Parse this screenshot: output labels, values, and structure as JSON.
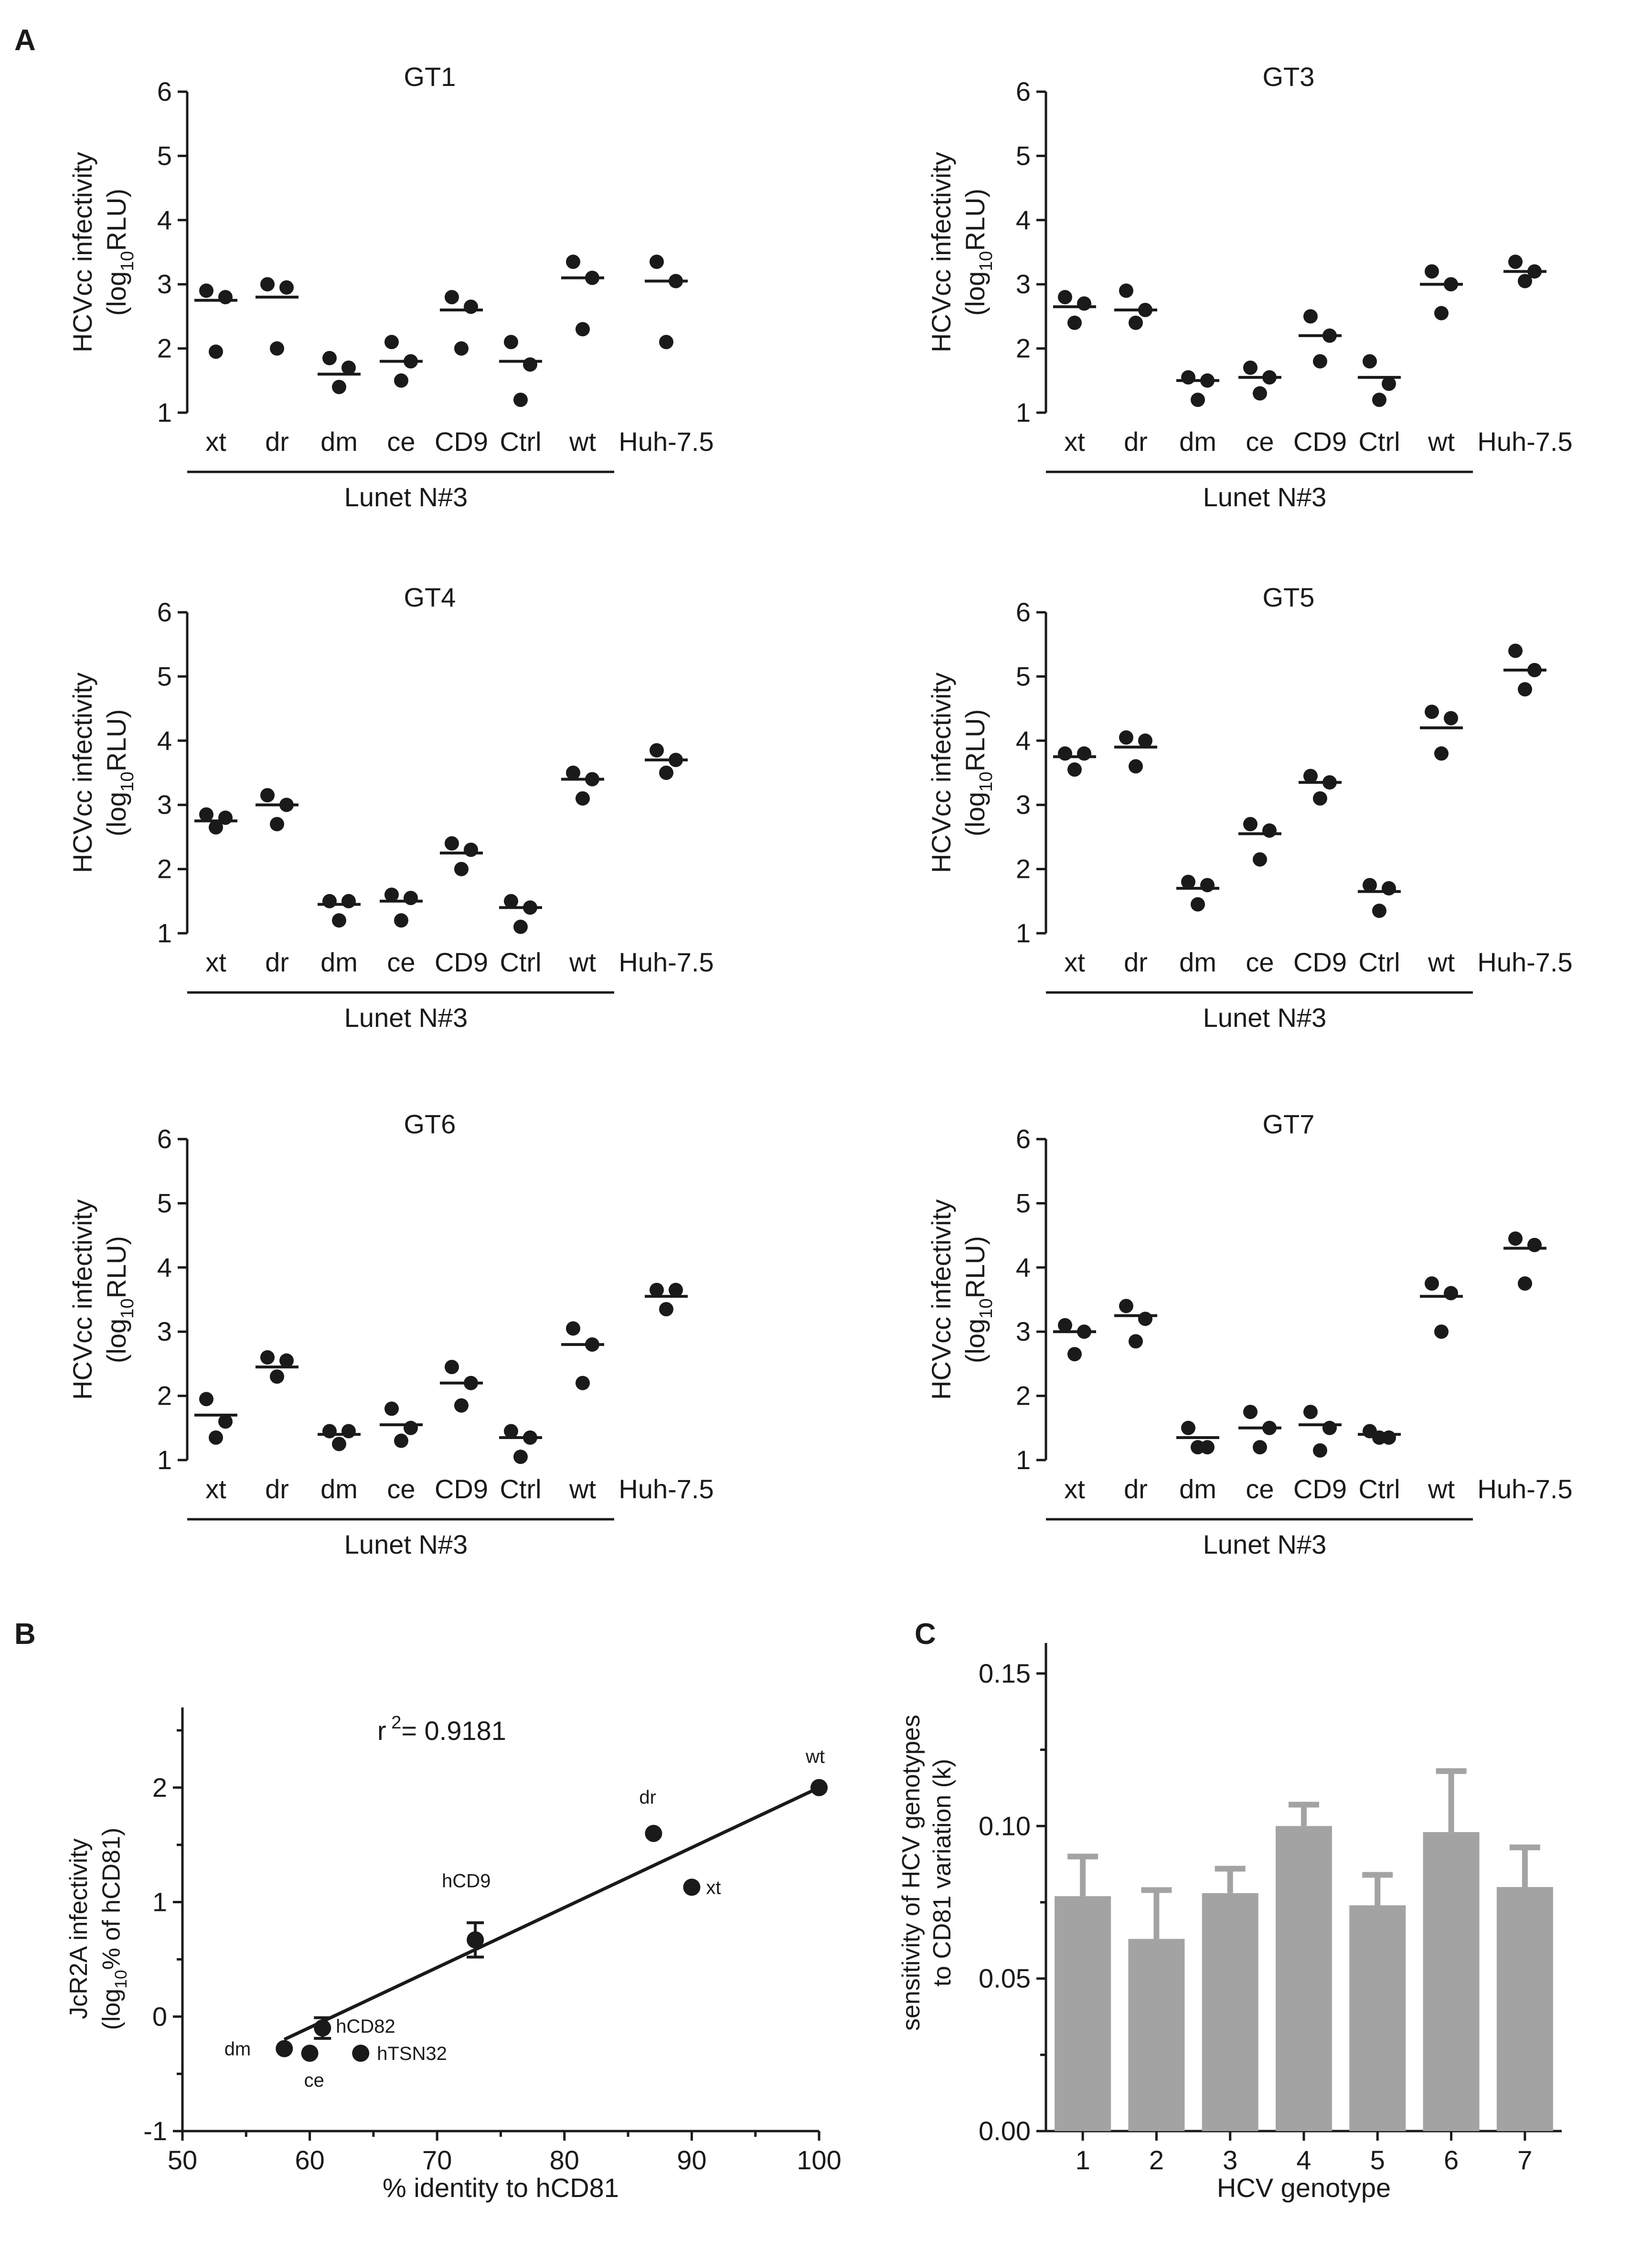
{
  "chart_data": [
    {
      "id": "A-GT1",
      "panel_label": "A",
      "type": "scatter",
      "title": "GT1",
      "ylabel_line1": "HCVcc infectivity",
      "ylabel_line2_prefix": "(log",
      "ylabel_line2_sub": "10",
      "ylabel_line2_suffix": "RLU)",
      "ylim": [
        1,
        6
      ],
      "yticks": [
        "1",
        "2",
        "3",
        "4",
        "5",
        "6"
      ],
      "categories": [
        "xt",
        "dr",
        "dm",
        "ce",
        "CD9",
        "Ctrl",
        "wt",
        "Huh-7.5"
      ],
      "group_label": "Lunet N#3",
      "points": [
        [
          2.9,
          2.8,
          1.95
        ],
        [
          3.0,
          2.95,
          2.0
        ],
        [
          1.85,
          1.7,
          1.4
        ],
        [
          2.1,
          1.8,
          1.5
        ],
        [
          2.8,
          2.65,
          2.0
        ],
        [
          2.1,
          1.75,
          1.2
        ],
        [
          3.35,
          3.1,
          2.3
        ],
        [
          3.35,
          3.05,
          2.1
        ]
      ],
      "means": [
        2.75,
        2.8,
        1.6,
        1.8,
        2.6,
        1.8,
        3.1,
        3.05
      ]
    },
    {
      "id": "A-GT3",
      "type": "scatter",
      "title": "GT3",
      "ylabel_line1": "HCVcc infectivity",
      "ylabel_line2_prefix": "(log",
      "ylabel_line2_sub": "10",
      "ylabel_line2_suffix": "RLU)",
      "ylim": [
        1,
        6
      ],
      "yticks": [
        "1",
        "2",
        "3",
        "4",
        "5",
        "6"
      ],
      "categories": [
        "xt",
        "dr",
        "dm",
        "ce",
        "CD9",
        "Ctrl",
        "wt",
        "Huh-7.5"
      ],
      "group_label": "Lunet N#3",
      "points": [
        [
          2.8,
          2.7,
          2.4
        ],
        [
          2.9,
          2.6,
          2.4
        ],
        [
          1.55,
          1.5,
          1.2
        ],
        [
          1.7,
          1.55,
          1.3
        ],
        [
          2.5,
          2.2,
          1.8
        ],
        [
          1.8,
          1.45,
          1.2
        ],
        [
          3.2,
          3.0,
          2.55
        ],
        [
          3.35,
          3.2,
          3.05
        ]
      ],
      "means": [
        2.65,
        2.6,
        1.5,
        1.55,
        2.2,
        1.55,
        3.0,
        3.2
      ]
    },
    {
      "id": "A-GT4",
      "type": "scatter",
      "title": "GT4",
      "ylabel_line1": "HCVcc infectivity",
      "ylabel_line2_prefix": "(log",
      "ylabel_line2_sub": "10",
      "ylabel_line2_suffix": "RLU)",
      "ylim": [
        1,
        6
      ],
      "yticks": [
        "1",
        "2",
        "3",
        "4",
        "5",
        "6"
      ],
      "categories": [
        "xt",
        "dr",
        "dm",
        "ce",
        "CD9",
        "Ctrl",
        "wt",
        "Huh-7.5"
      ],
      "group_label": "Lunet N#3",
      "points": [
        [
          2.85,
          2.8,
          2.65
        ],
        [
          3.15,
          3.0,
          2.7
        ],
        [
          1.5,
          1.5,
          1.2
        ],
        [
          1.6,
          1.55,
          1.2
        ],
        [
          2.4,
          2.3,
          2.0
        ],
        [
          1.5,
          1.4,
          1.1
        ],
        [
          3.5,
          3.4,
          3.1
        ],
        [
          3.85,
          3.7,
          3.5
        ]
      ],
      "means": [
        2.75,
        3.0,
        1.45,
        1.5,
        2.25,
        1.4,
        3.4,
        3.7
      ]
    },
    {
      "id": "A-GT5",
      "type": "scatter",
      "title": "GT5",
      "ylabel_line1": "HCVcc infectivity",
      "ylabel_line2_prefix": "(log",
      "ylabel_line2_sub": "10",
      "ylabel_line2_suffix": "RLU)",
      "ylim": [
        1,
        6
      ],
      "yticks": [
        "1",
        "2",
        "3",
        "4",
        "5",
        "6"
      ],
      "categories": [
        "xt",
        "dr",
        "dm",
        "ce",
        "CD9",
        "Ctrl",
        "wt",
        "Huh-7.5"
      ],
      "group_label": "Lunet N#3",
      "points": [
        [
          3.8,
          3.8,
          3.55
        ],
        [
          4.05,
          4.0,
          3.6
        ],
        [
          1.8,
          1.75,
          1.45
        ],
        [
          2.7,
          2.6,
          2.15
        ],
        [
          3.45,
          3.35,
          3.1
        ],
        [
          1.75,
          1.7,
          1.35
        ],
        [
          4.45,
          4.35,
          3.8
        ],
        [
          5.4,
          5.1,
          4.8
        ]
      ],
      "means": [
        3.75,
        3.9,
        1.7,
        2.55,
        3.35,
        1.65,
        4.2,
        5.1
      ]
    },
    {
      "id": "A-GT6",
      "type": "scatter",
      "title": "GT6",
      "ylabel_line1": "HCVcc infectivity",
      "ylabel_line2_prefix": "(log",
      "ylabel_line2_sub": "10",
      "ylabel_line2_suffix": "RLU)",
      "ylim": [
        1,
        6
      ],
      "yticks": [
        "1",
        "2",
        "3",
        "4",
        "5",
        "6"
      ],
      "categories": [
        "xt",
        "dr",
        "dm",
        "ce",
        "CD9",
        "Ctrl",
        "wt",
        "Huh-7.5"
      ],
      "group_label": "Lunet N#3",
      "points": [
        [
          1.95,
          1.6,
          1.35
        ],
        [
          2.6,
          2.55,
          2.3
        ],
        [
          1.45,
          1.45,
          1.25
        ],
        [
          1.8,
          1.5,
          1.3
        ],
        [
          2.45,
          2.2,
          1.85
        ],
        [
          1.45,
          1.35,
          1.05
        ],
        [
          3.05,
          2.8,
          2.2
        ],
        [
          3.65,
          3.65,
          3.35
        ]
      ],
      "means": [
        1.7,
        2.45,
        1.4,
        1.55,
        2.2,
        1.35,
        2.8,
        3.55
      ]
    },
    {
      "id": "A-GT7",
      "type": "scatter",
      "title": "GT7",
      "ylabel_line1": "HCVcc infectivity",
      "ylabel_line2_prefix": "(log",
      "ylabel_line2_sub": "10",
      "ylabel_line2_suffix": "RLU)",
      "ylim": [
        1,
        6
      ],
      "yticks": [
        "1",
        "2",
        "3",
        "4",
        "5",
        "6"
      ],
      "categories": [
        "xt",
        "dr",
        "dm",
        "ce",
        "CD9",
        "Ctrl",
        "wt",
        "Huh-7.5"
      ],
      "group_label": "Lunet N#3",
      "points": [
        [
          3.1,
          3.0,
          2.65
        ],
        [
          3.4,
          3.2,
          2.85
        ],
        [
          1.5,
          1.2,
          1.2
        ],
        [
          1.75,
          1.5,
          1.2
        ],
        [
          1.75,
          1.5,
          1.15
        ],
        [
          1.45,
          1.35,
          1.35
        ],
        [
          3.75,
          3.6,
          3.0
        ],
        [
          4.45,
          4.35,
          3.75
        ]
      ],
      "means": [
        3.0,
        3.25,
        1.35,
        1.5,
        1.55,
        1.4,
        3.55,
        4.3
      ]
    },
    {
      "id": "B",
      "panel_label": "B",
      "type": "scatter",
      "annotation_prefix": "r",
      "annotation_sup": "2",
      "annotation_value": "= 0.9181",
      "xlabel": "% identity to hCD81",
      "ylabel_line1": "JcR2A infectivity",
      "ylabel_line2_prefix": "(log",
      "ylabel_line2_sub": "10",
      "ylabel_line2_suffix": "% of hCD81)",
      "xlim": [
        50,
        100
      ],
      "ylim": [
        -1,
        2.7
      ],
      "xticks": [
        "50",
        "60",
        "70",
        "80",
        "90",
        "100"
      ],
      "yticks": [
        "-1",
        "0",
        "1",
        "2"
      ],
      "points": [
        {
          "label": "dm",
          "x": 58,
          "y": -0.28,
          "err": 0
        },
        {
          "label": "ce",
          "x": 60,
          "y": -0.32,
          "err": 0
        },
        {
          "label": "hCD82",
          "x": 61,
          "y": -0.1,
          "err": 0.09
        },
        {
          "label": "hTSN32",
          "x": 64,
          "y": -0.32,
          "err": 0
        },
        {
          "label": "hCD9",
          "x": 73,
          "y": 0.67,
          "err": 0.15
        },
        {
          "label": "dr",
          "x": 87,
          "y": 1.6,
          "err": 0
        },
        {
          "label": "xt",
          "x": 90,
          "y": 1.13,
          "err": 0
        },
        {
          "label": "wt",
          "x": 100,
          "y": 2.0,
          "err": 0
        }
      ],
      "fit_line": {
        "x": [
          58,
          100
        ],
        "y": [
          -0.2,
          2.0
        ]
      }
    },
    {
      "id": "C",
      "panel_label": "C",
      "type": "bar",
      "xlabel": "HCV genotype",
      "ylabel_line1": "sensitivity of HCV genotypes",
      "ylabel_line2": "to CD81 variation (k)",
      "categories": [
        "1",
        "2",
        "3",
        "4",
        "5",
        "6",
        "7"
      ],
      "values": [
        0.077,
        0.063,
        0.078,
        0.1,
        0.074,
        0.098,
        0.08
      ],
      "errors": [
        0.013,
        0.016,
        0.008,
        0.007,
        0.01,
        0.02,
        0.013
      ],
      "ylim": [
        0,
        0.16
      ],
      "yticks": [
        "0.00",
        "0.05",
        "0.10",
        "0.15"
      ],
      "ytick_values": [
        0,
        0.05,
        0.1,
        0.15
      ],
      "bar_color": "#a3a3a3"
    }
  ]
}
